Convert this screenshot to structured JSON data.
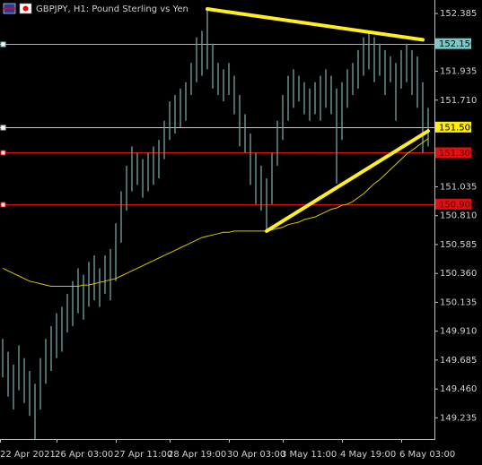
{
  "chart_data": {
    "type": "bar",
    "title": "GBPJPY, H1:  Pound Sterling vs Yen",
    "categories": [
      "22 Apr 2021",
      null,
      null,
      null,
      null,
      null,
      null,
      null,
      null,
      null,
      "26 Apr 03:00",
      null,
      null,
      null,
      null,
      null,
      null,
      null,
      null,
      null,
      null,
      "27 Apr 11:00",
      null,
      null,
      null,
      null,
      null,
      null,
      null,
      null,
      null,
      "28 Apr 19:00",
      null,
      null,
      null,
      null,
      null,
      null,
      null,
      null,
      null,
      null,
      "30 Apr 03:00",
      null,
      null,
      null,
      null,
      null,
      null,
      null,
      null,
      null,
      "3 May 11:00",
      null,
      null,
      null,
      null,
      null,
      null,
      null,
      null,
      null,
      null,
      "4 May 19:00",
      null,
      null,
      null,
      null,
      null,
      null,
      null,
      null,
      null,
      null,
      "6 May 03:00",
      null,
      null,
      null,
      null,
      null
    ],
    "low": [
      149.55,
      149.4,
      149.3,
      149.45,
      149.35,
      149.25,
      149.07,
      149.3,
      149.5,
      149.6,
      149.7,
      149.75,
      149.9,
      149.95,
      150.05,
      150.0,
      150.1,
      150.15,
      150.1,
      150.2,
      150.15,
      150.3,
      150.6,
      150.85,
      151.0,
      151.05,
      150.95,
      151.0,
      151.05,
      151.1,
      151.25,
      151.4,
      151.45,
      151.5,
      151.55,
      151.75,
      151.85,
      151.9,
      151.95,
      151.8,
      151.75,
      151.7,
      151.75,
      151.6,
      151.35,
      151.3,
      151.05,
      150.9,
      150.85,
      150.69,
      150.9,
      151.2,
      151.4,
      151.55,
      151.65,
      151.7,
      151.6,
      151.55,
      151.6,
      151.55,
      151.65,
      151.6,
      151.06,
      151.4,
      151.65,
      151.75,
      151.8,
      151.9,
      151.95,
      151.85,
      151.9,
      151.75,
      151.85,
      151.55,
      151.8,
      151.85,
      151.75,
      151.65,
      151.3,
      151.35
    ],
    "high": [
      149.85,
      149.75,
      149.65,
      149.8,
      149.7,
      149.6,
      149.5,
      149.7,
      149.85,
      149.95,
      150.05,
      150.1,
      150.2,
      150.3,
      150.4,
      150.35,
      150.45,
      150.5,
      150.4,
      150.5,
      150.55,
      150.75,
      151.0,
      151.2,
      151.35,
      151.3,
      151.25,
      151.3,
      151.35,
      151.4,
      151.55,
      151.7,
      151.75,
      151.8,
      151.85,
      152.0,
      152.2,
      152.25,
      152.42,
      152.15,
      152.0,
      151.95,
      152.0,
      151.9,
      151.75,
      151.6,
      151.45,
      151.3,
      151.2,
      151.1,
      151.3,
      151.55,
      151.75,
      151.9,
      151.95,
      151.9,
      151.85,
      151.8,
      151.85,
      151.9,
      151.95,
      151.9,
      151.8,
      151.85,
      151.95,
      152.0,
      152.1,
      152.2,
      152.25,
      152.2,
      152.15,
      152.1,
      152.05,
      152.0,
      152.1,
      152.15,
      152.1,
      152.05,
      151.85,
      151.65
    ],
    "bar_color": "#6f9898",
    "ma_values": [
      150.4,
      150.38,
      150.36,
      150.34,
      150.32,
      150.3,
      150.29,
      150.28,
      150.27,
      150.26,
      150.26,
      150.26,
      150.26,
      150.26,
      150.26,
      150.27,
      150.27,
      150.28,
      150.29,
      150.3,
      150.31,
      150.32,
      150.34,
      150.36,
      150.38,
      150.4,
      150.42,
      150.44,
      150.46,
      150.48,
      150.5,
      150.52,
      150.54,
      150.56,
      150.58,
      150.6,
      150.62,
      150.64,
      150.65,
      150.66,
      150.67,
      150.68,
      150.68,
      150.69,
      150.69,
      150.69,
      150.69,
      150.69,
      150.69,
      150.69,
      150.7,
      150.71,
      150.72,
      150.74,
      150.75,
      150.76,
      150.78,
      150.79,
      150.8,
      150.82,
      150.84,
      150.86,
      150.87,
      150.89,
      150.9,
      150.92,
      150.95,
      150.98,
      151.02,
      151.06,
      151.09,
      151.13,
      151.17,
      151.21,
      151.25,
      151.29,
      151.32,
      151.35,
      151.38,
      151.41
    ],
    "ma_color": "#d8c800",
    "trendlines": [
      {
        "x": [
          38,
          78
        ],
        "values": [
          152.42,
          152.18
        ],
        "color": "#ffee22"
      },
      {
        "x": [
          49,
          79
        ],
        "values": [
          150.69,
          151.47
        ],
        "color": "#ffee22"
      }
    ],
    "levels": [
      {
        "value": {
          "value": 152.15,
          "label": "152.150"
        },
        "color": "#78c8c8",
        "label_color": "#000000"
      },
      {
        "value": {
          "value": 151.5,
          "label": "151.500"
        },
        "color": "#c8c8c8",
        "label_bg": "#ffee00",
        "label_color": "#000000"
      },
      {
        "value": {
          "value": 151.3,
          "label": "151.300"
        },
        "color": "#e01010",
        "label_color": "#600000"
      },
      {
        "value": {
          "value": 150.9,
          "label": "150.900"
        },
        "color": "#e01010",
        "label_color": "#600000"
      }
    ],
    "ylim": [
      149.07,
      152.49
    ],
    "yticks": [
      152.385,
      151.935,
      {
        "value": 151.71,
        "label": "151.710"
      },
      151.035,
      {
        "value": 150.81,
        "label": "150.810"
      },
      150.585,
      {
        "value": 150.36,
        "label": "150.360"
      },
      150.135,
      {
        "value": 149.91,
        "label": "149.910"
      },
      149.685,
      {
        "value": 149.46,
        "label": "149.460"
      },
      149.235
    ]
  }
}
